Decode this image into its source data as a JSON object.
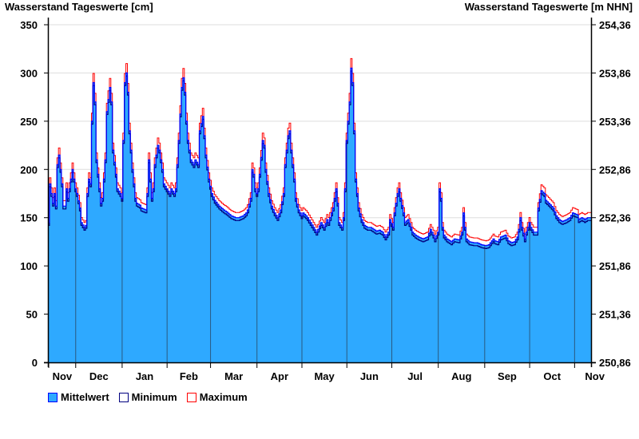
{
  "chart_data": {
    "type": "area",
    "title_left": "Wasserstand Tageswerte [cm]",
    "title_right": "Wasserstand Tageswerte [m NHN]",
    "ylim": [
      0,
      350
    ],
    "y_ticks": [
      0,
      50,
      100,
      150,
      200,
      250,
      300,
      350
    ],
    "y2_ticks": [
      "250,86",
      "251,36",
      "251,86",
      "252,36",
      "252,86",
      "253,36",
      "253,86",
      "254,36"
    ],
    "x_unit": "days since start (mid-November)",
    "xlim": [
      0,
      362
    ],
    "months": [
      {
        "label": "Nov",
        "start": 0
      },
      {
        "label": "Dec",
        "start": 18
      },
      {
        "label": "Jan",
        "start": 49
      },
      {
        "label": "Feb",
        "start": 79
      },
      {
        "label": "Mar",
        "start": 108
      },
      {
        "label": "Apr",
        "start": 139
      },
      {
        "label": "May",
        "start": 169
      },
      {
        "label": "Jun",
        "start": 199
      },
      {
        "label": "Jul",
        "start": 229
      },
      {
        "label": "Aug",
        "start": 260
      },
      {
        "label": "Sep",
        "start": 291
      },
      {
        "label": "Oct",
        "start": 321
      },
      {
        "label": "Nov",
        "start": 351
      }
    ],
    "grid": true,
    "legend_position": "bottom-left",
    "colors": {
      "mean_fill": "#2ea9ff",
      "mean_line": "#0000ff",
      "min_line": "#000080",
      "max_line": "#ff0000",
      "grid": "#dddddd",
      "month_line": "#2a5a80"
    },
    "series": [
      {
        "name": "Mittelwert",
        "points": [
          [
            0,
            145
          ],
          [
            1,
            185
          ],
          [
            3,
            165
          ],
          [
            4,
            175
          ],
          [
            5,
            162
          ],
          [
            6,
            205
          ],
          [
            7,
            215
          ],
          [
            9,
            185
          ],
          [
            10,
            162
          ],
          [
            11,
            162
          ],
          [
            12,
            180
          ],
          [
            13,
            170
          ],
          [
            14,
            180
          ],
          [
            16,
            200
          ],
          [
            18,
            180
          ],
          [
            19,
            175
          ],
          [
            21,
            160
          ],
          [
            22,
            145
          ],
          [
            24,
            140
          ],
          [
            25,
            142
          ],
          [
            26,
            175
          ],
          [
            27,
            190
          ],
          [
            28,
            185
          ],
          [
            29,
            250
          ],
          [
            30,
            290
          ],
          [
            31,
            270
          ],
          [
            32,
            210
          ],
          [
            34,
            180
          ],
          [
            35,
            165
          ],
          [
            36,
            170
          ],
          [
            38,
            210
          ],
          [
            39,
            260
          ],
          [
            41,
            285
          ],
          [
            42,
            270
          ],
          [
            43,
            220
          ],
          [
            45,
            195
          ],
          [
            46,
            180
          ],
          [
            48,
            175
          ],
          [
            49,
            170
          ],
          [
            50,
            230
          ],
          [
            51,
            290
          ],
          [
            52,
            300
          ],
          [
            53,
            280
          ],
          [
            54,
            240
          ],
          [
            56,
            200
          ],
          [
            58,
            170
          ],
          [
            59,
            165
          ],
          [
            61,
            163
          ],
          [
            62,
            160
          ],
          [
            65,
            158
          ],
          [
            66,
            175
          ],
          [
            67,
            210
          ],
          [
            68,
            190
          ],
          [
            69,
            170
          ],
          [
            70,
            180
          ],
          [
            71,
            205
          ],
          [
            73,
            225
          ],
          [
            74,
            220
          ],
          [
            76,
            200
          ],
          [
            77,
            185
          ],
          [
            79,
            180
          ],
          [
            81,
            175
          ],
          [
            82,
            180
          ],
          [
            84,
            175
          ],
          [
            85,
            180
          ],
          [
            87,
            230
          ],
          [
            89,
            285
          ],
          [
            90,
            295
          ],
          [
            91,
            280
          ],
          [
            92,
            250
          ],
          [
            93,
            230
          ],
          [
            95,
            210
          ],
          [
            97,
            205
          ],
          [
            98,
            210
          ],
          [
            100,
            205
          ],
          [
            101,
            240
          ],
          [
            103,
            255
          ],
          [
            104,
            235
          ],
          [
            105,
            215
          ],
          [
            107,
            190
          ],
          [
            109,
            175
          ],
          [
            111,
            168
          ],
          [
            114,
            162
          ],
          [
            117,
            158
          ],
          [
            119,
            156
          ],
          [
            122,
            152
          ],
          [
            125,
            150
          ],
          [
            127,
            150
          ],
          [
            130,
            152
          ],
          [
            132,
            155
          ],
          [
            133,
            158
          ],
          [
            135,
            170
          ],
          [
            136,
            200
          ],
          [
            137,
            195
          ],
          [
            138,
            180
          ],
          [
            139,
            175
          ],
          [
            140,
            180
          ],
          [
            141,
            195
          ],
          [
            143,
            230
          ],
          [
            144,
            225
          ],
          [
            145,
            200
          ],
          [
            147,
            175
          ],
          [
            149,
            162
          ],
          [
            151,
            155
          ],
          [
            153,
            150
          ],
          [
            155,
            158
          ],
          [
            157,
            175
          ],
          [
            158,
            205
          ],
          [
            160,
            235
          ],
          [
            161,
            240
          ],
          [
            162,
            220
          ],
          [
            164,
            190
          ],
          [
            165,
            170
          ],
          [
            167,
            158
          ],
          [
            169,
            152
          ],
          [
            170,
            155
          ],
          [
            172,
            152
          ],
          [
            173,
            150
          ],
          [
            175,
            145
          ],
          [
            177,
            140
          ],
          [
            179,
            135
          ],
          [
            180,
            138
          ],
          [
            182,
            145
          ],
          [
            184,
            140
          ],
          [
            186,
            148
          ],
          [
            187,
            145
          ],
          [
            189,
            155
          ],
          [
            190,
            160
          ],
          [
            192,
            180
          ],
          [
            193,
            165
          ],
          [
            194,
            145
          ],
          [
            196,
            140
          ],
          [
            197,
            150
          ],
          [
            198,
            180
          ],
          [
            199,
            230
          ],
          [
            201,
            270
          ],
          [
            202,
            305
          ],
          [
            203,
            290
          ],
          [
            204,
            240
          ],
          [
            205,
            190
          ],
          [
            207,
            160
          ],
          [
            209,
            148
          ],
          [
            211,
            142
          ],
          [
            213,
            140
          ],
          [
            215,
            140
          ],
          [
            217,
            138
          ],
          [
            219,
            136
          ],
          [
            221,
            137
          ],
          [
            223,
            135
          ],
          [
            225,
            130
          ],
          [
            227,
            135
          ],
          [
            228,
            148
          ],
          [
            230,
            140
          ],
          [
            231,
            155
          ],
          [
            233,
            175
          ],
          [
            234,
            180
          ],
          [
            235,
            170
          ],
          [
            237,
            155
          ],
          [
            238,
            145
          ],
          [
            240,
            148
          ],
          [
            242,
            140
          ],
          [
            243,
            135
          ],
          [
            245,
            132
          ],
          [
            247,
            130
          ],
          [
            250,
            128
          ],
          [
            253,
            130
          ],
          [
            255,
            138
          ],
          [
            257,
            132
          ],
          [
            258,
            128
          ],
          [
            260,
            135
          ],
          [
            261,
            180
          ],
          [
            262,
            170
          ],
          [
            263,
            140
          ],
          [
            264,
            132
          ],
          [
            266,
            128
          ],
          [
            269,
            125
          ],
          [
            271,
            128
          ],
          [
            274,
            127
          ],
          [
            276,
            135
          ],
          [
            277,
            155
          ],
          [
            278,
            140
          ],
          [
            279,
            128
          ],
          [
            281,
            125
          ],
          [
            284,
            124
          ],
          [
            286,
            124
          ],
          [
            289,
            122
          ],
          [
            292,
            121
          ],
          [
            294,
            122
          ],
          [
            297,
            128
          ],
          [
            298,
            126
          ],
          [
            300,
            125
          ],
          [
            302,
            130
          ],
          [
            305,
            132
          ],
          [
            307,
            126
          ],
          [
            309,
            124
          ],
          [
            311,
            125
          ],
          [
            313,
            130
          ],
          [
            314,
            138
          ],
          [
            315,
            150
          ],
          [
            316,
            140
          ],
          [
            318,
            128
          ],
          [
            319,
            135
          ],
          [
            321,
            145
          ],
          [
            322,
            140
          ],
          [
            324,
            135
          ],
          [
            326,
            135
          ],
          [
            327,
            160
          ],
          [
            329,
            178
          ],
          [
            331,
            175
          ],
          [
            332,
            168
          ],
          [
            334,
            165
          ],
          [
            337,
            160
          ],
          [
            339,
            152
          ],
          [
            341,
            148
          ],
          [
            343,
            146
          ],
          [
            346,
            148
          ],
          [
            348,
            150
          ],
          [
            350,
            155
          ],
          [
            353,
            153
          ],
          [
            354,
            148
          ],
          [
            356,
            150
          ],
          [
            358,
            148
          ],
          [
            360,
            150
          ],
          [
            362,
            150
          ]
        ]
      },
      {
        "name": "Minimum",
        "offset_from_mean": -3
      },
      {
        "name": "Maximum",
        "offset_from_mean": 5
      }
    ]
  }
}
